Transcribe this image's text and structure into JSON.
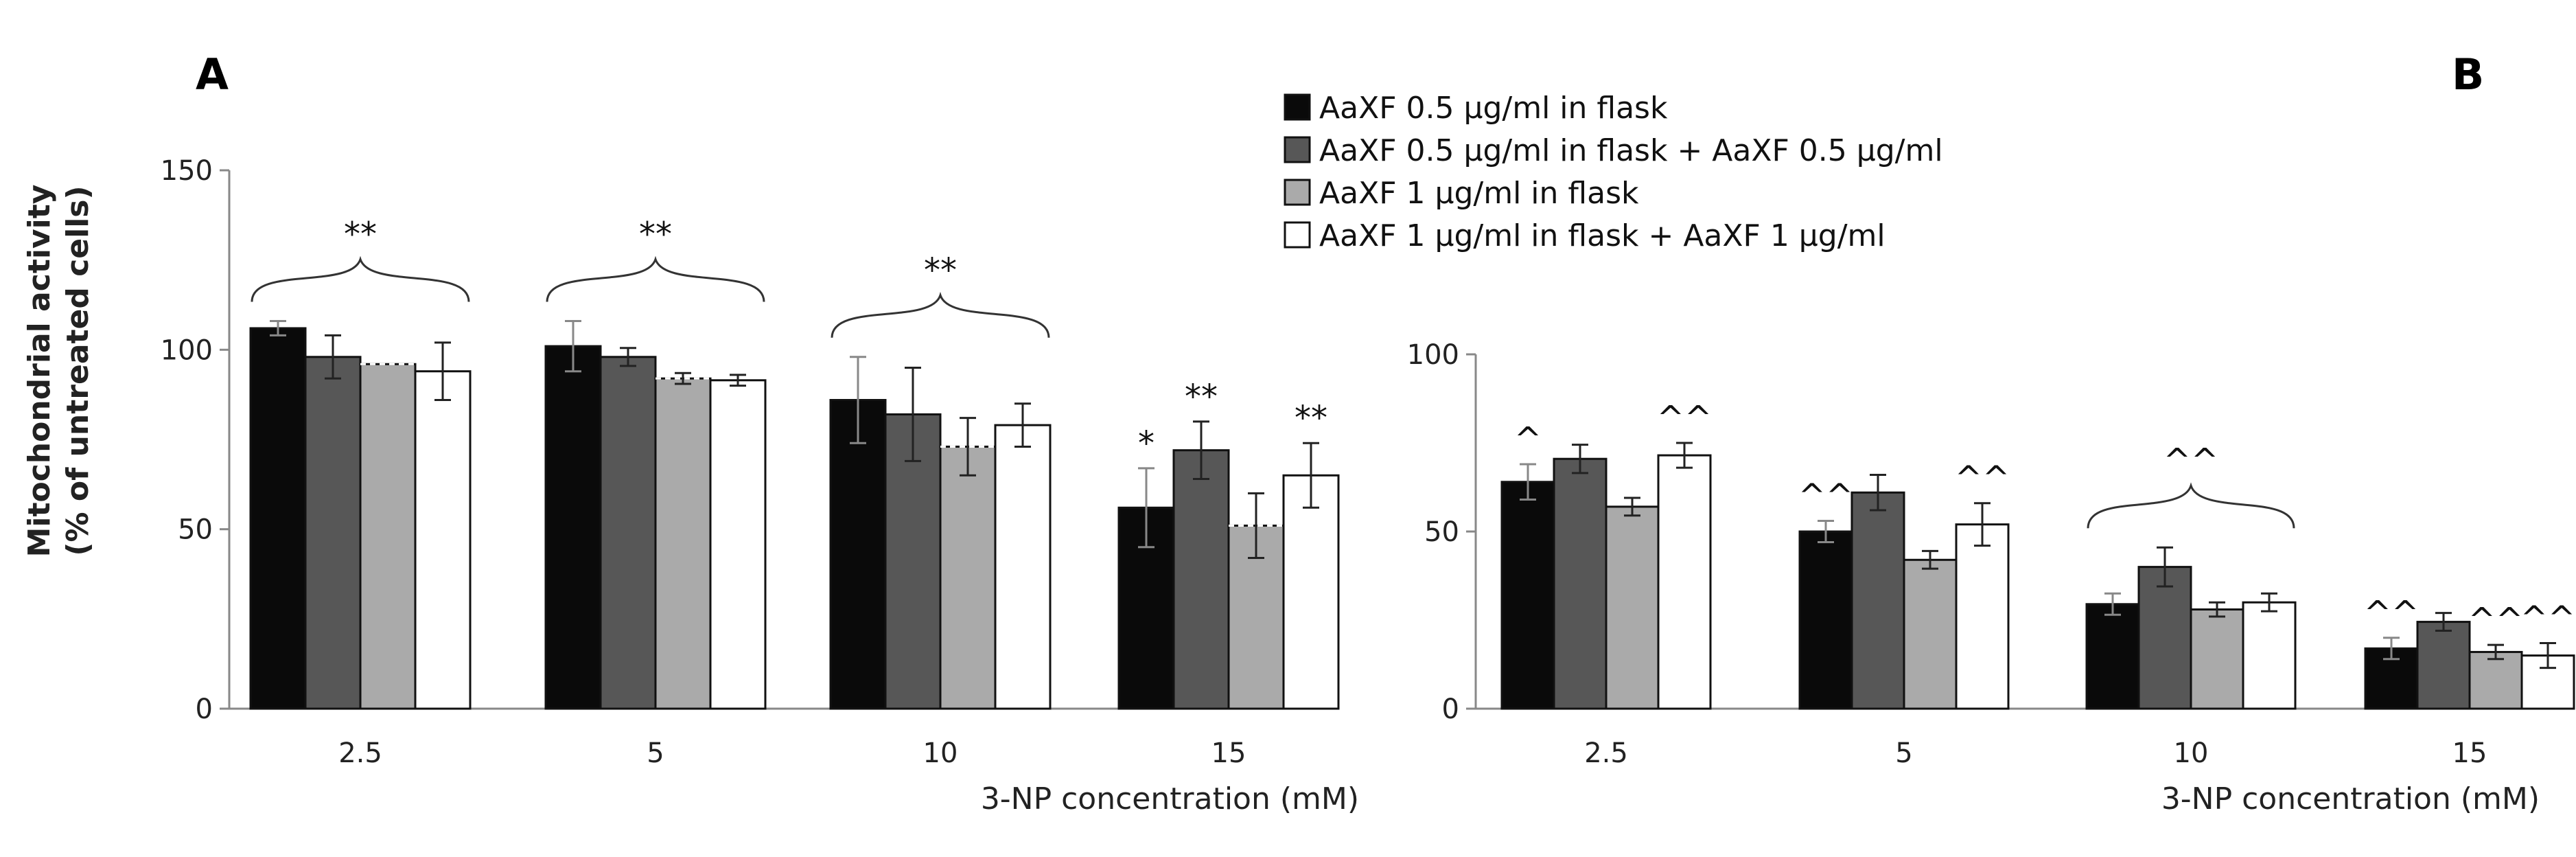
{
  "panel_labels": [
    "A",
    "B"
  ],
  "legend": [
    {
      "label": "AaXF 0.5 µg/ml in flask",
      "color": "#0a0a0a"
    },
    {
      "label": "AaXF 0.5 µg/ml in flask + AaXF  0.5 µg/ml",
      "color": "#575757"
    },
    {
      "label": "AaXF 1 µg/ml in flask",
      "color": "#aaaaaa"
    },
    {
      "label": "AaXF 1 µg/ml in flask + AaXF  1 µg/ml",
      "color": "#ffffff"
    }
  ],
  "chart_data": [
    {
      "type": "bar",
      "panel": "A",
      "categories": [
        "2.5",
        "5",
        "10",
        "15"
      ],
      "xlabel": "3-NP concentration (mM)",
      "ylabel": [
        "Mitochondrial activity",
        "(% of untreated cells)"
      ],
      "ylim": [
        0,
        150
      ],
      "yticks": [
        0,
        50,
        100,
        150
      ],
      "series": [
        {
          "name": "AaXF 0.5 µg/ml in flask",
          "values": [
            106,
            101,
            86,
            56
          ],
          "errors": [
            2,
            7,
            12,
            11
          ]
        },
        {
          "name": "AaXF 0.5 µg/ml in flask + AaXF  0.5 µg/ml",
          "values": [
            98,
            98,
            82,
            72
          ],
          "errors": [
            6,
            2.5,
            13,
            8
          ]
        },
        {
          "name": "AaXF 1 µg/ml in flask",
          "values": [
            96,
            92,
            73,
            51
          ],
          "errors": [
            0,
            1.5,
            8,
            9
          ]
        },
        {
          "name": "AaXF 1 µg/ml in flask + AaXF  1 µg/ml",
          "values": [
            94,
            91.5,
            79,
            65
          ],
          "errors": [
            8,
            1.5,
            6,
            9
          ]
        }
      ],
      "annotations": [
        {
          "text": "**",
          "category": 0,
          "type": "brace"
        },
        {
          "text": "**",
          "category": 1,
          "type": "brace"
        },
        {
          "text": "**",
          "category": 2,
          "type": "brace"
        },
        {
          "text": "*",
          "category": 3,
          "series": 0
        },
        {
          "text": "**",
          "category": 3,
          "series": 1
        },
        {
          "text": "**",
          "category": 3,
          "series": 3
        }
      ]
    },
    {
      "type": "bar",
      "panel": "B",
      "categories": [
        "2.5",
        "5",
        "10",
        "15"
      ],
      "xlabel": "3-NP  concentration (mM)",
      "ylim": [
        0,
        100
      ],
      "yticks": [
        0,
        50,
        100
      ],
      "series": [
        {
          "name": "AaXF 0.5 µg/ml in flask",
          "values": [
            64,
            50,
            29.5,
            17
          ],
          "errors": [
            5,
            3,
            3,
            3
          ]
        },
        {
          "name": "AaXF 0.5 µg/ml in flask + AaXF  0.5 µg/ml",
          "values": [
            70.5,
            61,
            40,
            24.5
          ],
          "errors": [
            4,
            5,
            5.5,
            2.5
          ]
        },
        {
          "name": "AaXF 1 µg/ml in flask",
          "values": [
            57,
            42,
            28,
            16
          ],
          "errors": [
            2.5,
            2.5,
            2,
            2
          ]
        },
        {
          "name": "AaXF 1 µg/ml in flask + AaXF  1 µg/ml",
          "values": [
            71.5,
            52,
            30,
            15
          ],
          "errors": [
            3.5,
            6,
            2.5,
            3.5
          ]
        }
      ],
      "annotations": [
        {
          "text": "^",
          "category": 0,
          "series": 0
        },
        {
          "text": "^^",
          "category": 0,
          "series": 3
        },
        {
          "text": "^^",
          "category": 1,
          "series": 0
        },
        {
          "text": "^^",
          "category": 1,
          "series": 3
        },
        {
          "text": "^^",
          "category": 2,
          "type": "brace"
        },
        {
          "text": "^^",
          "category": 3,
          "series": 0
        },
        {
          "text": "^^",
          "category": 3,
          "series": 2
        },
        {
          "text": "^^",
          "category": 3,
          "series": 3
        }
      ]
    }
  ]
}
